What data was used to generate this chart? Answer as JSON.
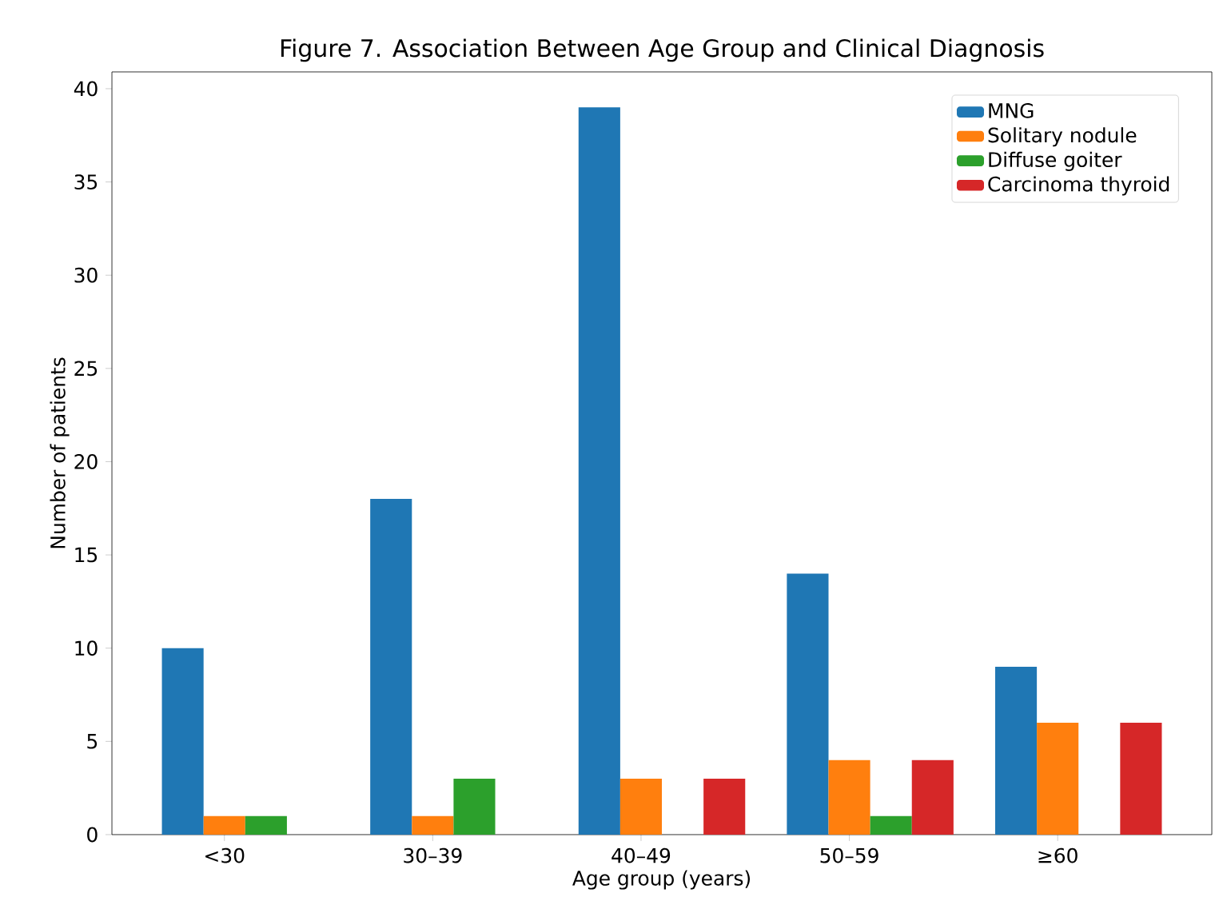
{
  "chart_data": {
    "type": "bar",
    "title": "Figure 7. Association Between Age Group and Clinical Diagnosis",
    "xlabel": "Age group (years)",
    "ylabel": "Number of patients",
    "categories": [
      "<30",
      "30–39",
      "40–49",
      "50–59",
      "≥60"
    ],
    "series": [
      {
        "name": "MNG",
        "color": "#1f77b4",
        "values": [
          10,
          18,
          39,
          14,
          9
        ]
      },
      {
        "name": "Solitary nodule",
        "color": "#ff7f0e",
        "values": [
          1,
          1,
          3,
          4,
          6
        ]
      },
      {
        "name": "Diffuse goiter",
        "color": "#2ca02c",
        "values": [
          1,
          3,
          0,
          1,
          0
        ]
      },
      {
        "name": "Carcinoma thyroid",
        "color": "#d62728",
        "values": [
          0,
          0,
          3,
          4,
          6
        ]
      }
    ],
    "ylim": [
      0,
      40.9
    ],
    "yticks": [
      0,
      5,
      10,
      15,
      20,
      25,
      30,
      35,
      40
    ],
    "legend": "top right",
    "grid": false
  }
}
